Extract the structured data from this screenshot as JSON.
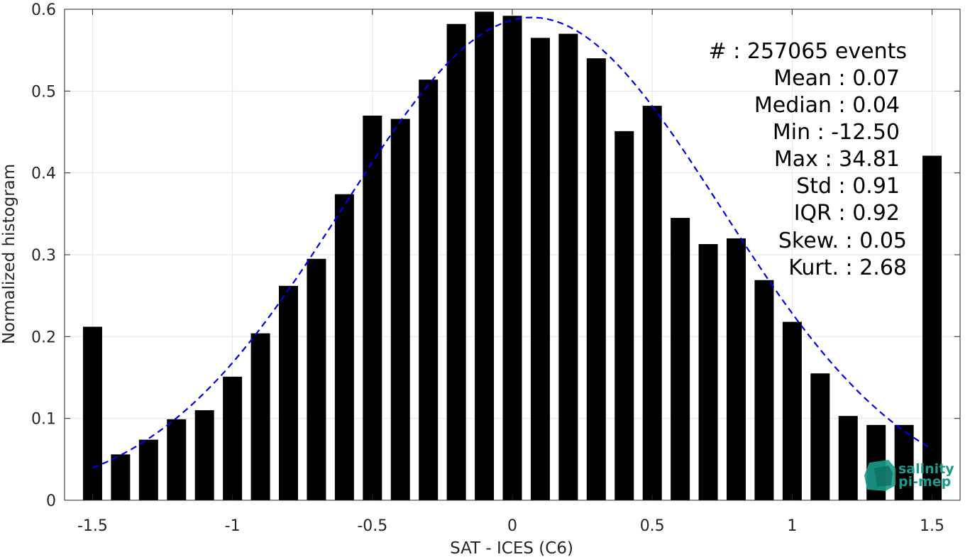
{
  "chart_data": {
    "type": "bar",
    "xlabel": "SAT - ICES (C6)",
    "ylabel": "Normalized histogram",
    "xlim": [
      -1.6,
      1.6
    ],
    "ylim": [
      0,
      0.6
    ],
    "grid": true,
    "x_ticks": [
      -1.5,
      -1,
      -0.5,
      0,
      0.5,
      1,
      1.5
    ],
    "x_tick_labels": [
      "-1.5",
      "-1",
      "-0.5",
      "0",
      "0.5",
      "1",
      "1.5"
    ],
    "y_ticks": [
      0,
      0.1,
      0.2,
      0.3,
      0.4,
      0.5,
      0.6
    ],
    "y_tick_labels": [
      "0",
      "0.1",
      "0.2",
      "0.3",
      "0.4",
      "0.5",
      "0.6"
    ],
    "bar_color": "#000000",
    "x": [
      -1.5,
      -1.4,
      -1.3,
      -1.2,
      -1.1,
      -1.0,
      -0.9,
      -0.8,
      -0.7,
      -0.6,
      -0.5,
      -0.4,
      -0.3,
      -0.2,
      -0.1,
      0.0,
      0.1,
      0.2,
      0.3,
      0.4,
      0.5,
      0.6,
      0.7,
      0.8,
      0.9,
      1.0,
      1.1,
      1.2,
      1.3,
      1.4,
      1.5
    ],
    "values": [
      0.212,
      0.056,
      0.074,
      0.099,
      0.11,
      0.151,
      0.204,
      0.262,
      0.295,
      0.374,
      0.47,
      0.466,
      0.514,
      0.582,
      0.597,
      0.592,
      0.565,
      0.57,
      0.54,
      0.451,
      0.482,
      0.345,
      0.313,
      0.32,
      0.269,
      0.218,
      0.155,
      0.103,
      0.092,
      0.092,
      0.421
    ],
    "fit_curve": {
      "style": "dashed",
      "color": "#0000ee",
      "mean": 0.07,
      "std": 0.675,
      "peak": 0.59,
      "x_range": [
        -1.5,
        1.5
      ]
    },
    "annotations": [
      "#  : 257065 events",
      "Mean : 0.07",
      "Median : 0.04",
      "Min : -12.50",
      "Max : 34.81",
      "Std : 0.91",
      "IQR : 0.92",
      "Skew. : 0.05",
      "Kurt. : 2.68"
    ]
  },
  "logo": {
    "line1": "salinity",
    "line2": "pi-mep",
    "color": "#1a9a8a"
  }
}
